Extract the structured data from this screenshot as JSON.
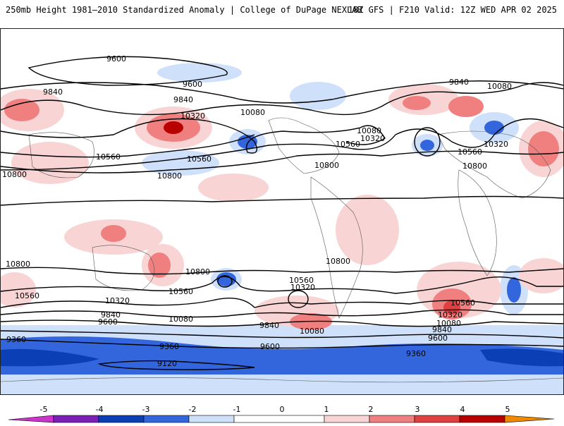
{
  "header": {
    "title": "250mb Height 1981–2010 Standardized Anomaly | College of DuPage NEXLAB",
    "run_info": "18Z GFS | F210 Valid: 12Z WED APR 02 2025"
  },
  "colors": {
    "anom_neg5": "#cc33cc",
    "anom_neg4": "#7a1fb8",
    "anom_neg3": "#0a3fb5",
    "anom_neg2": "#3366dd",
    "anom_neg1": "#cfe0fa",
    "anom_pos1": "#f9d4d4",
    "anom_pos2": "#f08080",
    "anom_pos3": "#e04040",
    "anom_pos4": "#b80000",
    "anom_pos5": "#f08800"
  },
  "map": {
    "contour_labels": [
      "9600",
      "9600",
      "9840",
      "9840",
      "9840",
      "10080",
      "10080",
      "10080",
      "10320",
      "10320",
      "10320",
      "10560",
      "10560",
      "10560",
      "10560",
      "10800",
      "10800",
      "10800",
      "10800",
      "10800",
      "10800",
      "10800",
      "10560",
      "10560",
      "10560",
      "10560",
      "10320",
      "10320",
      "10320",
      "10080",
      "10080",
      "10080",
      "9840",
      "9840",
      "9840",
      "9600",
      "9600",
      "9600",
      "9360",
      "9360",
      "9360",
      "9120"
    ]
  },
  "colorbar": {
    "tick_labels": [
      "-5",
      "-4",
      "-3",
      "-2",
      "-1",
      "0",
      "1",
      "2",
      "3",
      "4",
      "5"
    ]
  }
}
